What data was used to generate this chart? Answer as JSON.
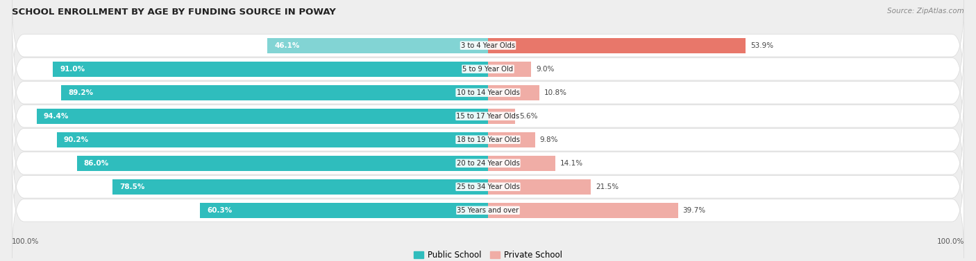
{
  "title": "SCHOOL ENROLLMENT BY AGE BY FUNDING SOURCE IN POWAY",
  "source": "Source: ZipAtlas.com",
  "categories": [
    "3 to 4 Year Olds",
    "5 to 9 Year Old",
    "10 to 14 Year Olds",
    "15 to 17 Year Olds",
    "18 to 19 Year Olds",
    "20 to 24 Year Olds",
    "25 to 34 Year Olds",
    "35 Years and over"
  ],
  "public_values": [
    46.1,
    91.0,
    89.2,
    94.4,
    90.2,
    86.0,
    78.5,
    60.3
  ],
  "private_values": [
    53.9,
    9.0,
    10.8,
    5.6,
    9.8,
    14.1,
    21.5,
    39.7
  ],
  "public_color_dark": "#2FBDBD",
  "public_color_light": "#82D4D4",
  "private_color_dark": "#E8776A",
  "private_color_light": "#F0ADA6",
  "background_color": "#EEEEEE",
  "max_value": 100.0,
  "legend_public": "Public School",
  "legend_private": "Private School",
  "axis_label_left": "100.0%",
  "axis_label_right": "100.0%"
}
